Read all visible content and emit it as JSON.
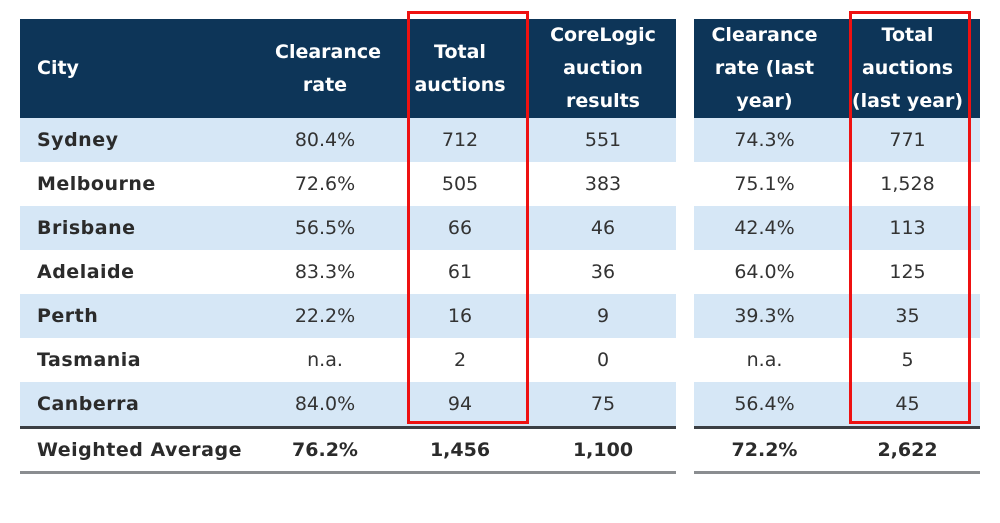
{
  "left_table": {
    "headers": [
      "City",
      "Clearance rate",
      "Total auctions",
      "CoreLogic auction results"
    ],
    "rows": [
      [
        "Sydney",
        "80.4%",
        "712",
        "551"
      ],
      [
        "Melbourne",
        "72.6%",
        "505",
        "383"
      ],
      [
        "Brisbane",
        "56.5%",
        "66",
        "46"
      ],
      [
        "Adelaide",
        "83.3%",
        "61",
        "36"
      ],
      [
        "Perth",
        "22.2%",
        "16",
        "9"
      ],
      [
        "Tasmania",
        "n.a.",
        "2",
        "0"
      ],
      [
        "Canberra",
        "84.0%",
        "94",
        "75"
      ]
    ],
    "total": [
      "Weighted Average",
      "76.2%",
      "1,456",
      "1,100"
    ]
  },
  "right_table": {
    "headers": [
      "Clearance rate (last year)",
      "Total auctions (last year)"
    ],
    "rows": [
      [
        "74.3%",
        "771"
      ],
      [
        "75.1%",
        "1,528"
      ],
      [
        "42.4%",
        "113"
      ],
      [
        "64.0%",
        "125"
      ],
      [
        "39.3%",
        "35"
      ],
      [
        "n.a.",
        "5"
      ],
      [
        "56.4%",
        "45"
      ]
    ],
    "total": [
      "72.2%",
      "2,622"
    ]
  },
  "colors": {
    "header": "#0d3558",
    "alt_row": "#d6e7f6",
    "highlight": "#ee1111"
  }
}
